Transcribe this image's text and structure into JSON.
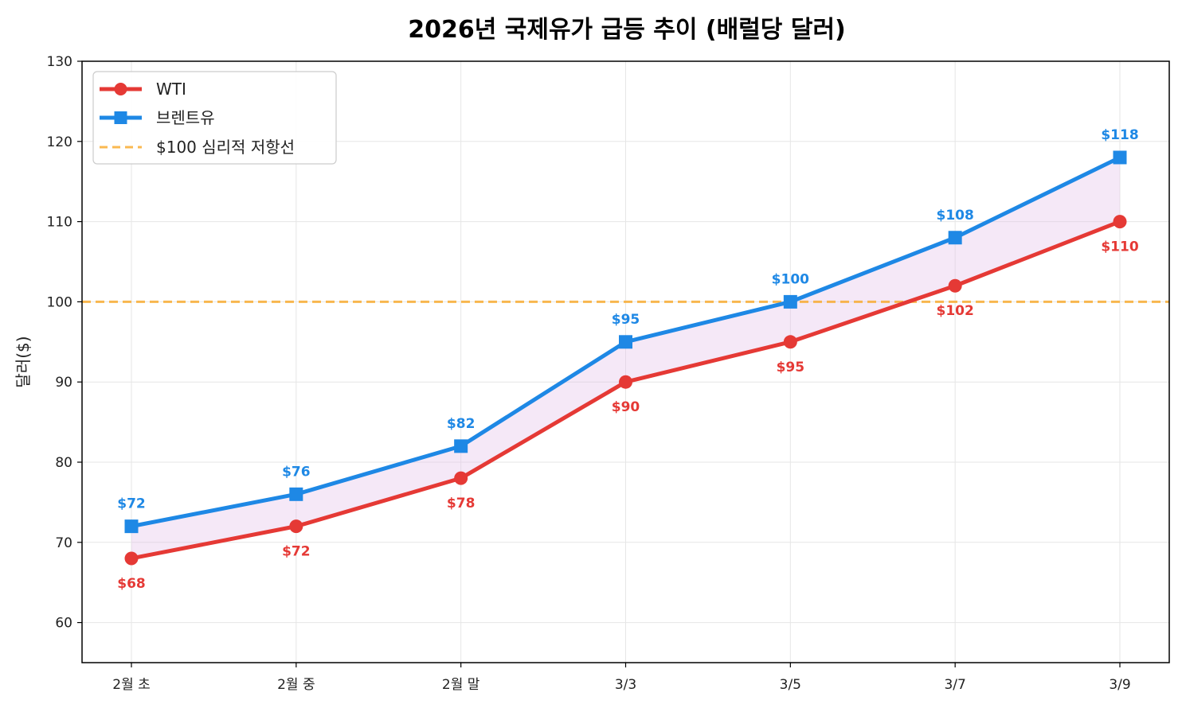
{
  "chart_data": {
    "type": "line",
    "title": "2026년 국제유가 급등 추이 (배럴당 달러)",
    "xlabel": "",
    "ylabel": "달러($)",
    "categories": [
      "2월 초",
      "2월 중",
      "2월 말",
      "3/3",
      "3/5",
      "3/7",
      "3/9"
    ],
    "ylim": [
      55,
      130
    ],
    "yticks": [
      60,
      70,
      80,
      90,
      100,
      110,
      120,
      130
    ],
    "grid": true,
    "legend_position": "top-left",
    "series": [
      {
        "name": "WTI",
        "color": "#e53935",
        "marker": "circle",
        "values": [
          68,
          72,
          78,
          90,
          95,
          102,
          110
        ],
        "labels": [
          "$68",
          "$72",
          "$78",
          "$90",
          "$95",
          "$102",
          "$110"
        ],
        "label_position": "below"
      },
      {
        "name": "브렌트유",
        "color": "#1e88e5",
        "marker": "square",
        "values": [
          72,
          76,
          82,
          95,
          100,
          108,
          118
        ],
        "labels": [
          "$72",
          "$76",
          "$82",
          "$95",
          "$100",
          "$108",
          "$118"
        ],
        "label_position": "above"
      }
    ],
    "fill_between": {
      "color": "#e1bee7"
    },
    "reference_line": {
      "name": "$100 심리적 저항선",
      "value": 100,
      "color": "#f9a825",
      "style": "dashed"
    }
  }
}
